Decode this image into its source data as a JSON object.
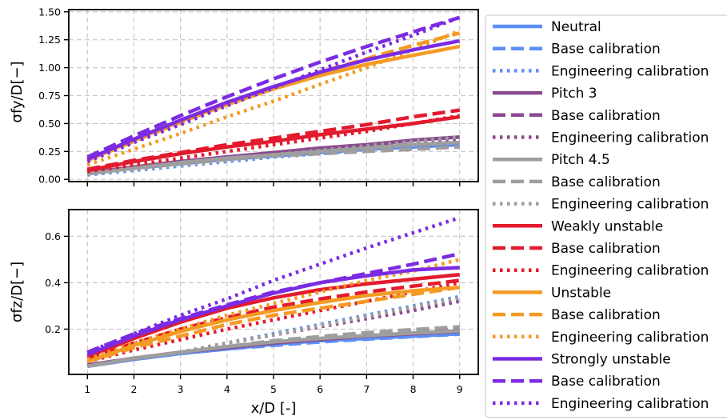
{
  "chart_data": [
    {
      "type": "line",
      "ylabel": "σfy/D[−]",
      "xlabel": "",
      "x": [
        1,
        2,
        3,
        4,
        5,
        6,
        7,
        8,
        9
      ],
      "xlim": [
        0.6,
        9.4
      ],
      "ylim": [
        -0.02,
        1.52
      ],
      "yticks": [
        0.0,
        0.25,
        0.5,
        0.75,
        1.0,
        1.25,
        1.5
      ],
      "ytick_labels": [
        "0.00",
        "0.25",
        "0.50",
        "0.75",
        "1.00",
        "1.25",
        "1.50"
      ],
      "grid": true,
      "series": [
        {
          "name": "Neutral",
          "group": "Neutral",
          "style": "solid",
          "color": "#5b8ff9",
          "values": [
            0.05,
            0.1,
            0.14,
            0.18,
            0.21,
            0.24,
            0.27,
            0.29,
            0.31
          ]
        },
        {
          "name": "Base calibration",
          "group": "Neutral",
          "style": "dashed",
          "color": "#5b8ff9",
          "values": [
            0.05,
            0.1,
            0.14,
            0.18,
            0.21,
            0.24,
            0.26,
            0.28,
            0.3
          ]
        },
        {
          "name": "Engineering calibration",
          "group": "Neutral",
          "style": "dotted",
          "color": "#5b8ff9",
          "values": [
            0.04,
            0.08,
            0.12,
            0.16,
            0.2,
            0.23,
            0.27,
            0.3,
            0.33
          ]
        },
        {
          "name": "Pitch 3",
          "group": "Pitch 3",
          "style": "solid",
          "color": "#8b4a8f",
          "values": [
            0.06,
            0.11,
            0.16,
            0.2,
            0.24,
            0.28,
            0.31,
            0.35,
            0.38
          ]
        },
        {
          "name": "Base calibration",
          "group": "Pitch 3",
          "style": "dashed",
          "color": "#8b4a8f",
          "values": [
            0.06,
            0.11,
            0.16,
            0.2,
            0.23,
            0.26,
            0.29,
            0.31,
            0.33
          ]
        },
        {
          "name": "Engineering calibration",
          "group": "Pitch 3",
          "style": "dotted",
          "color": "#8b4a8f",
          "values": [
            0.05,
            0.1,
            0.14,
            0.18,
            0.22,
            0.26,
            0.29,
            0.32,
            0.35
          ]
        },
        {
          "name": "Pitch 4.5",
          "group": "Pitch 4.5",
          "style": "solid",
          "color": "#9e9e9e",
          "values": [
            0.05,
            0.1,
            0.15,
            0.19,
            0.22,
            0.25,
            0.28,
            0.31,
            0.33
          ]
        },
        {
          "name": "Base calibration",
          "group": "Pitch 4.5",
          "style": "dashed",
          "color": "#9e9e9e",
          "values": [
            0.05,
            0.1,
            0.14,
            0.18,
            0.21,
            0.23,
            0.25,
            0.27,
            0.29
          ]
        },
        {
          "name": "Engineering calibration",
          "group": "Pitch 4.5",
          "style": "dotted",
          "color": "#9e9e9e",
          "values": [
            0.05,
            0.09,
            0.13,
            0.17,
            0.22,
            0.26,
            0.3,
            0.34,
            0.38
          ]
        },
        {
          "name": "Weakly unstable",
          "group": "Weakly unstable",
          "style": "solid",
          "color": "#e31a2d",
          "values": [
            0.08,
            0.16,
            0.23,
            0.29,
            0.34,
            0.4,
            0.45,
            0.5,
            0.56
          ]
        },
        {
          "name": "Base calibration",
          "group": "Weakly unstable",
          "style": "dashed",
          "color": "#e31a2d",
          "values": [
            0.09,
            0.17,
            0.24,
            0.31,
            0.37,
            0.43,
            0.49,
            0.56,
            0.62
          ]
        },
        {
          "name": "Engineering calibration",
          "group": "Weakly unstable",
          "style": "dotted",
          "color": "#e31a2d",
          "values": [
            0.07,
            0.13,
            0.19,
            0.25,
            0.31,
            0.37,
            0.43,
            0.5,
            0.57
          ]
        },
        {
          "name": "Unstable",
          "group": "Unstable",
          "style": "solid",
          "color": "#f59a23",
          "values": [
            0.17,
            0.35,
            0.52,
            0.67,
            0.81,
            0.93,
            1.03,
            1.11,
            1.19
          ]
        },
        {
          "name": "Base calibration",
          "group": "Unstable",
          "style": "dashed",
          "color": "#f59a23",
          "values": [
            0.17,
            0.34,
            0.51,
            0.67,
            0.82,
            0.96,
            1.08,
            1.2,
            1.31
          ]
        },
        {
          "name": "Engineering calibration",
          "group": "Unstable",
          "style": "dotted",
          "color": "#f59a23",
          "values": [
            0.13,
            0.27,
            0.41,
            0.56,
            0.7,
            0.85,
            1.0,
            1.16,
            1.33
          ]
        },
        {
          "name": "Strongly unstable",
          "group": "Strongly unstable",
          "style": "solid",
          "color": "#7b2be2",
          "values": [
            0.18,
            0.36,
            0.53,
            0.69,
            0.83,
            0.96,
            1.07,
            1.16,
            1.24
          ]
        },
        {
          "name": "Base calibration",
          "group": "Strongly unstable",
          "style": "dashed",
          "color": "#7b2be2",
          "values": [
            0.2,
            0.39,
            0.57,
            0.74,
            0.9,
            1.05,
            1.19,
            1.32,
            1.45
          ]
        },
        {
          "name": "Engineering calibration",
          "group": "Strongly unstable",
          "style": "dotted",
          "color": "#7b2be2",
          "values": [
            0.16,
            0.33,
            0.49,
            0.66,
            0.82,
            0.98,
            1.14,
            1.29,
            1.45
          ]
        }
      ]
    },
    {
      "type": "line",
      "ylabel": "σfz/D[−]",
      "xlabel": "x/D [-]",
      "x": [
        1,
        2,
        3,
        4,
        5,
        6,
        7,
        8,
        9
      ],
      "xlim": [
        0.6,
        9.4
      ],
      "ylim": [
        0.005,
        0.715
      ],
      "xticks": [
        1,
        2,
        3,
        4,
        5,
        6,
        7,
        8,
        9
      ],
      "xtick_labels": [
        "1",
        "2",
        "3",
        "4",
        "5",
        "6",
        "7",
        "8",
        "9"
      ],
      "yticks": [
        0.2,
        0.4,
        0.6
      ],
      "ytick_labels": [
        "0.2",
        "0.4",
        "0.6"
      ],
      "grid": true,
      "series": [
        {
          "name": "Neutral",
          "group": "Neutral",
          "style": "solid",
          "color": "#5b8ff9",
          "values": [
            0.04,
            0.07,
            0.095,
            0.115,
            0.135,
            0.15,
            0.16,
            0.17,
            0.18
          ]
        },
        {
          "name": "Base calibration",
          "group": "Neutral",
          "style": "dashed",
          "color": "#5b8ff9",
          "values": [
            0.04,
            0.07,
            0.095,
            0.115,
            0.13,
            0.145,
            0.157,
            0.168,
            0.178
          ]
        },
        {
          "name": "Engineering calibration",
          "group": "Neutral",
          "style": "dotted",
          "color": "#5b8ff9",
          "values": [
            0.04,
            0.07,
            0.1,
            0.14,
            0.18,
            0.22,
            0.26,
            0.3,
            0.34
          ]
        },
        {
          "name": "Pitch 3",
          "group": "Pitch 3",
          "style": "solid",
          "color": "#8b4a8f",
          "values": [
            0.045,
            0.075,
            0.1,
            0.12,
            0.14,
            0.155,
            0.17,
            0.18,
            0.19
          ]
        },
        {
          "name": "Base calibration",
          "group": "Pitch 3",
          "style": "dashed",
          "color": "#8b4a8f",
          "values": [
            0.045,
            0.075,
            0.1,
            0.125,
            0.145,
            0.16,
            0.175,
            0.19,
            0.2
          ]
        },
        {
          "name": "Engineering calibration",
          "group": "Pitch 3",
          "style": "dotted",
          "color": "#8b4a8f",
          "values": [
            0.04,
            0.07,
            0.1,
            0.14,
            0.175,
            0.21,
            0.245,
            0.28,
            0.32
          ]
        },
        {
          "name": "Pitch 4.5",
          "group": "Pitch 4.5",
          "style": "solid",
          "color": "#9e9e9e",
          "values": [
            0.04,
            0.075,
            0.1,
            0.125,
            0.145,
            0.16,
            0.172,
            0.183,
            0.193
          ]
        },
        {
          "name": "Base calibration",
          "group": "Pitch 4.5",
          "style": "dashed",
          "color": "#9e9e9e",
          "values": [
            0.04,
            0.075,
            0.1,
            0.125,
            0.15,
            0.168,
            0.185,
            0.198,
            0.21
          ]
        },
        {
          "name": "Engineering calibration",
          "group": "Pitch 4.5",
          "style": "dotted",
          "color": "#9e9e9e",
          "values": [
            0.04,
            0.07,
            0.1,
            0.14,
            0.175,
            0.215,
            0.255,
            0.295,
            0.335
          ]
        },
        {
          "name": "Weakly unstable",
          "group": "Weakly unstable",
          "style": "solid",
          "color": "#e31a2d",
          "values": [
            0.08,
            0.16,
            0.23,
            0.29,
            0.335,
            0.37,
            0.395,
            0.415,
            0.435
          ]
        },
        {
          "name": "Base calibration",
          "group": "Weakly unstable",
          "style": "dashed",
          "color": "#e31a2d",
          "values": [
            0.07,
            0.14,
            0.2,
            0.25,
            0.295,
            0.33,
            0.36,
            0.385,
            0.41
          ]
        },
        {
          "name": "Engineering calibration",
          "group": "Weakly unstable",
          "style": "dotted",
          "color": "#e31a2d",
          "values": [
            0.06,
            0.11,
            0.155,
            0.2,
            0.24,
            0.28,
            0.32,
            0.36,
            0.4
          ]
        },
        {
          "name": "Unstable",
          "group": "Unstable",
          "style": "solid",
          "color": "#f59a23",
          "values": [
            0.06,
            0.13,
            0.19,
            0.24,
            0.28,
            0.315,
            0.345,
            0.365,
            0.38
          ]
        },
        {
          "name": "Base calibration",
          "group": "Unstable",
          "style": "dashed",
          "color": "#f59a23",
          "values": [
            0.06,
            0.12,
            0.17,
            0.22,
            0.26,
            0.29,
            0.32,
            0.35,
            0.38
          ]
        },
        {
          "name": "Engineering calibration",
          "group": "Unstable",
          "style": "dotted",
          "color": "#f59a23",
          "values": [
            0.07,
            0.14,
            0.2,
            0.26,
            0.31,
            0.36,
            0.41,
            0.45,
            0.5
          ]
        },
        {
          "name": "Strongly unstable",
          "group": "Strongly unstable",
          "style": "solid",
          "color": "#7b2be2",
          "values": [
            0.09,
            0.17,
            0.24,
            0.3,
            0.355,
            0.4,
            0.43,
            0.455,
            0.465
          ]
        },
        {
          "name": "Base calibration",
          "group": "Strongly unstable",
          "style": "dashed",
          "color": "#7b2be2",
          "values": [
            0.1,
            0.18,
            0.245,
            0.305,
            0.36,
            0.4,
            0.44,
            0.48,
            0.525
          ]
        },
        {
          "name": "Engineering calibration",
          "group": "Strongly unstable",
          "style": "dotted",
          "color": "#7b2be2",
          "values": [
            0.1,
            0.18,
            0.26,
            0.33,
            0.41,
            0.48,
            0.55,
            0.615,
            0.68
          ]
        }
      ]
    }
  ],
  "legend": {
    "placement": "right",
    "items": [
      {
        "label": "Neutral",
        "color": "#5b8ff9",
        "style": "solid"
      },
      {
        "label": "Base calibration",
        "color": "#5b8ff9",
        "style": "dashed"
      },
      {
        "label": "Engineering calibration",
        "color": "#5b8ff9",
        "style": "dotted"
      },
      {
        "label": "Pitch 3",
        "color": "#8b4a8f",
        "style": "solid"
      },
      {
        "label": "Base calibration",
        "color": "#8b4a8f",
        "style": "dashed"
      },
      {
        "label": "Engineering calibration",
        "color": "#8b4a8f",
        "style": "dotted"
      },
      {
        "label": "Pitch 4.5",
        "color": "#9e9e9e",
        "style": "solid"
      },
      {
        "label": "Base calibration",
        "color": "#9e9e9e",
        "style": "dashed"
      },
      {
        "label": "Engineering calibration",
        "color": "#9e9e9e",
        "style": "dotted"
      },
      {
        "label": "Weakly unstable",
        "color": "#e31a2d",
        "style": "solid"
      },
      {
        "label": "Base calibration",
        "color": "#e31a2d",
        "style": "dashed"
      },
      {
        "label": "Engineering calibration",
        "color": "#e31a2d",
        "style": "dotted"
      },
      {
        "label": "Unstable",
        "color": "#f59a23",
        "style": "solid"
      },
      {
        "label": "Base calibration",
        "color": "#f59a23",
        "style": "dashed"
      },
      {
        "label": "Engineering calibration",
        "color": "#f59a23",
        "style": "dotted"
      },
      {
        "label": "Strongly unstable",
        "color": "#7b2be2",
        "style": "solid"
      },
      {
        "label": "Base calibration",
        "color": "#7b2be2",
        "style": "dashed"
      },
      {
        "label": "Engineering calibration",
        "color": "#7b2be2",
        "style": "dotted"
      }
    ]
  }
}
